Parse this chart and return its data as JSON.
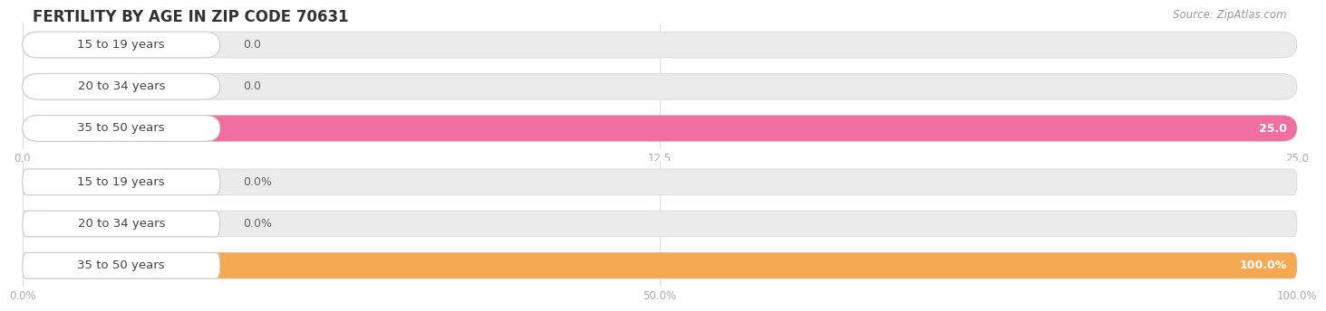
{
  "title": "FERTILITY BY AGE IN ZIP CODE 70631",
  "source": "Source: ZipAtlas.com",
  "top_chart": {
    "categories": [
      "15 to 19 years",
      "20 to 34 years",
      "35 to 50 years"
    ],
    "values": [
      0.0,
      0.0,
      25.0
    ],
    "xlim": [
      0,
      25
    ],
    "xticks": [
      0.0,
      12.5,
      25.0
    ],
    "xtick_labels": [
      "0.0",
      "12.5",
      "25.0"
    ],
    "bar_color_full": "#ee6fa0",
    "bar_color_light": "#f5c0d0",
    "value_labels": [
      "0.0",
      "0.0",
      "25.0"
    ]
  },
  "bottom_chart": {
    "categories": [
      "15 to 19 years",
      "20 to 34 years",
      "35 to 50 years"
    ],
    "values": [
      0.0,
      0.0,
      100.0
    ],
    "xlim": [
      0,
      100
    ],
    "xticks": [
      0.0,
      50.0,
      100.0
    ],
    "xtick_labels": [
      "0.0%",
      "50.0%",
      "100.0%"
    ],
    "bar_color_full": "#f5a952",
    "bar_color_light": "#f8d4a0",
    "value_labels": [
      "0.0%",
      "0.0%",
      "100.0%"
    ]
  },
  "bg_color": "#ffffff",
  "bar_bg_color": "#ebebeb",
  "title_fontsize": 12,
  "source_fontsize": 8.5,
  "label_fontsize": 9.5,
  "value_fontsize": 9,
  "bar_height": 0.62,
  "label_pill_color": "#ffffff",
  "label_pill_edge": "#cccccc"
}
